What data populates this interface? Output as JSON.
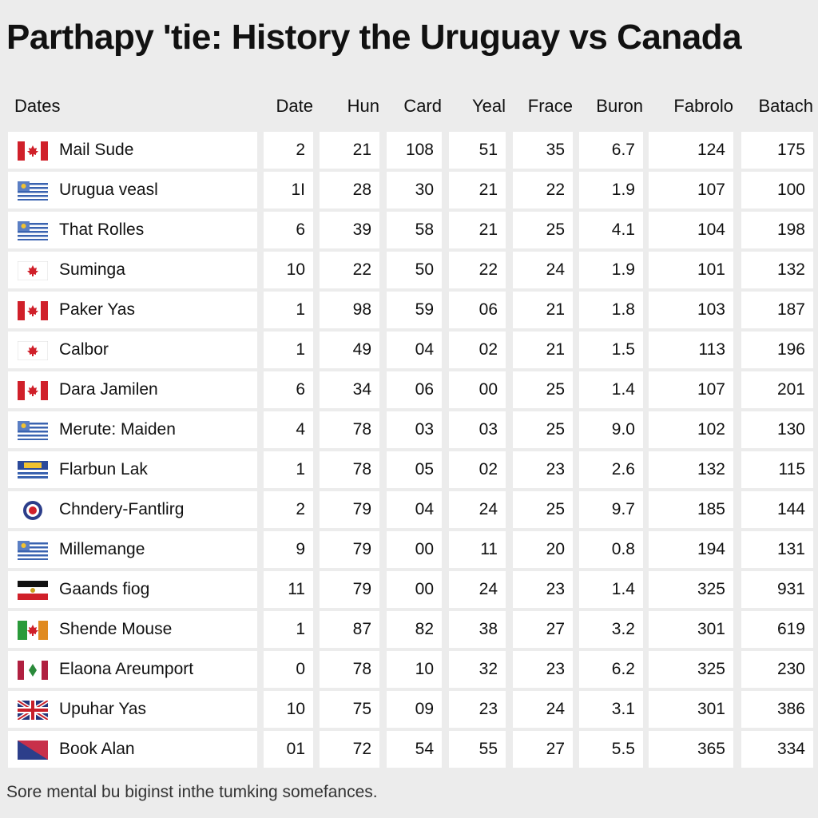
{
  "title": "Parthapy 'tie: History the Uruguay vs Canada",
  "table": {
    "headers": [
      "Dates",
      "Date",
      "Hun",
      "Card",
      "Yeal",
      "Frace",
      "Buron",
      "Fabrolo",
      "Batach"
    ],
    "rows": [
      [
        "Mail Sude",
        "2",
        "21",
        "108",
        "51",
        "35",
        "6.7",
        "124",
        "175"
      ],
      [
        "Urugua veasl",
        "1I",
        "28",
        "30",
        "21",
        "22",
        "1.9",
        "107",
        "100"
      ],
      [
        "That Rolles",
        "6",
        "39",
        "58",
        "21",
        "25",
        "4.1",
        "104",
        "198"
      ],
      [
        "Suminga",
        "10",
        "22",
        "50",
        "22",
        "24",
        "1.9",
        "101",
        "132"
      ],
      [
        "Paker Yas",
        "1",
        "98",
        "59",
        "06",
        "21",
        "1.8",
        "103",
        "187"
      ],
      [
        "Calbor",
        "1",
        "49",
        "04",
        "02",
        "21",
        "1.5",
        "113",
        "196"
      ],
      [
        "Dara Jamilen",
        "6",
        "34",
        "06",
        "00",
        "25",
        "1.4",
        "107",
        "201"
      ],
      [
        "Merute: Maiden",
        "4",
        "78",
        "03",
        "03",
        "25",
        "9.0",
        "102",
        "130"
      ],
      [
        "Flarbun Lak",
        "1",
        "78",
        "05",
        "02",
        "23",
        "2.6",
        "132",
        "115"
      ],
      [
        "Chndery-Fantlirg",
        "2",
        "79",
        "04",
        "24",
        "25",
        "9.7",
        "185",
        "144"
      ],
      [
        "Millemange",
        "9",
        "79",
        "00",
        "11",
        "20",
        "0.8",
        "194",
        "131"
      ],
      [
        "Gaands fiog",
        "11",
        "79",
        "00",
        "24",
        "23",
        "1.4",
        "325",
        "931"
      ],
      [
        "Shende Mouse",
        "1",
        "87",
        "82",
        "38",
        "27",
        "3.2",
        "301",
        "619"
      ],
      [
        "Elaona Areumport",
        "0",
        "78",
        "10",
        "32",
        "23",
        "6.2",
        "325",
        "230"
      ],
      [
        "Upuhar Yas",
        "10",
        "75",
        "09",
        "23",
        "24",
        "3.1",
        "301",
        "386"
      ],
      [
        "Book Alan",
        "01",
        "72",
        "54",
        "55",
        "27",
        "5.5",
        "365",
        "334"
      ]
    ]
  },
  "footer": "Sore mental bu biginst inthe tumking somefances."
}
